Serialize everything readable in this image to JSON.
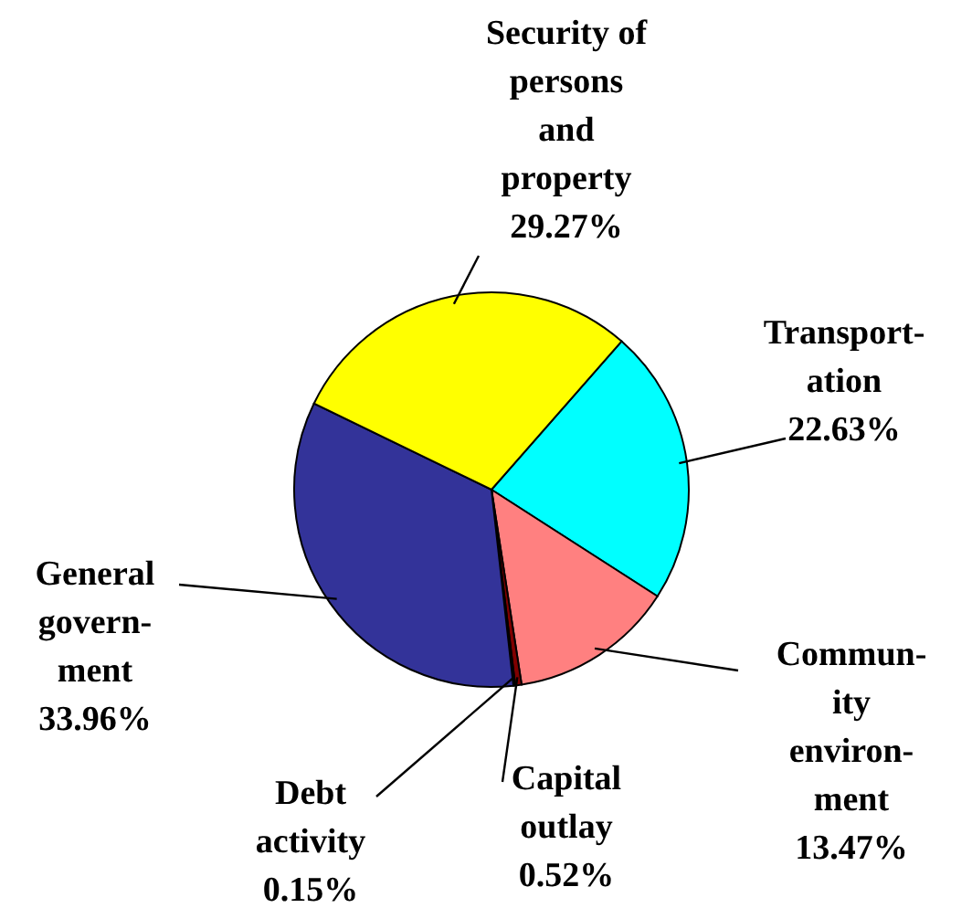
{
  "chart_data": {
    "type": "pie",
    "categories": [
      "Transport-\nation",
      "Commun-\nity\nenviron-\nment",
      "Capital\noutlay",
      "Debt\nactivity",
      "General\ngovern-\nment",
      "Security of\npersons\nand\nproperty"
    ],
    "values": [
      22.63,
      13.47,
      0.52,
      0.15,
      33.96,
      29.27
    ],
    "value_labels": [
      "22.63%",
      "13.47%",
      "0.52%",
      "0.15%",
      "33.96%",
      "29.27%"
    ],
    "colors": [
      "#00ffff",
      "#ff8080",
      "#800000",
      "#000000",
      "#333399",
      "#ffff00"
    ]
  }
}
